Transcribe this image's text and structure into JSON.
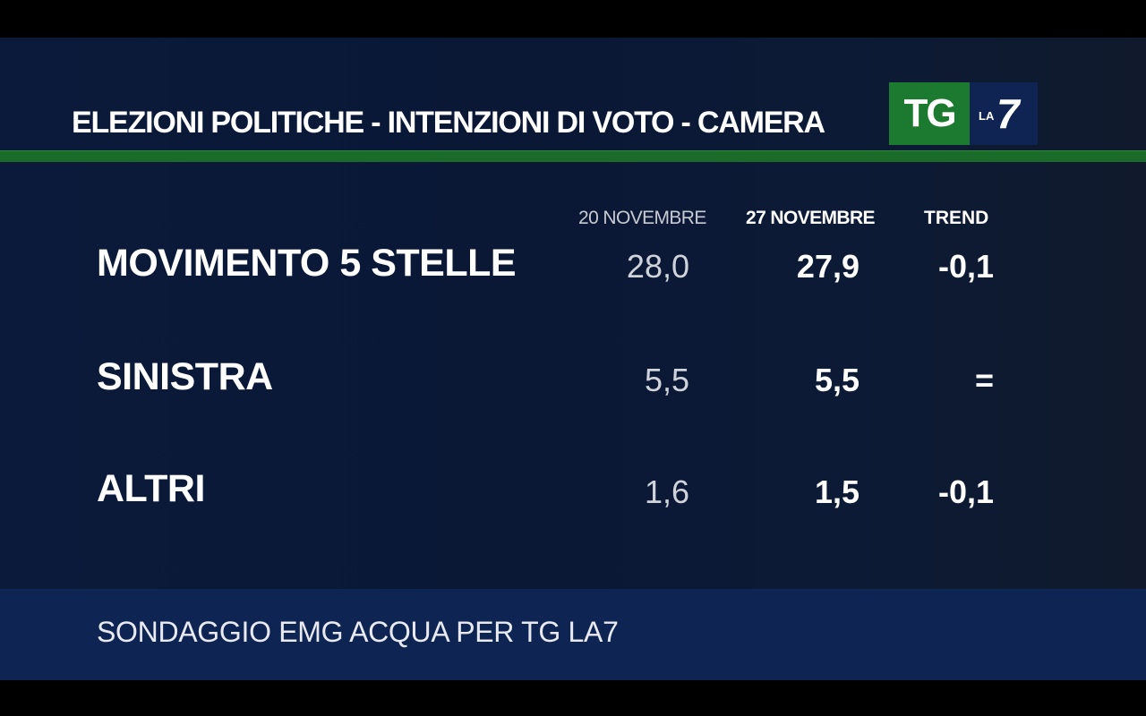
{
  "header": {
    "title": "ELEZIONI POLITICHE - INTENZIONI DI VOTO - CAMERA",
    "logo_tg": "TG",
    "logo_la": "LA",
    "logo_seven": "7"
  },
  "columns": {
    "prev": "20 NOVEMBRE",
    "cur": "27 NOVEMBRE",
    "trend": "TREND"
  },
  "rows": [
    {
      "name": "MOVIMENTO 5 STELLE",
      "prev": "28,0",
      "cur": "27,9",
      "trend": "-0,1"
    },
    {
      "name": "SINISTRA",
      "prev": "5,5",
      "cur": "5,5",
      "trend": "="
    },
    {
      "name": "ALTRI",
      "prev": "1,6",
      "cur": "1,5",
      "trend": "-0,1"
    }
  ],
  "footer": {
    "source": "SONDAGGIO EMG ACQUA PER TG LA7"
  },
  "colors": {
    "background": "#0b1a3a",
    "accent_green": "#1c7a30",
    "footer_band": "#0e2452"
  }
}
